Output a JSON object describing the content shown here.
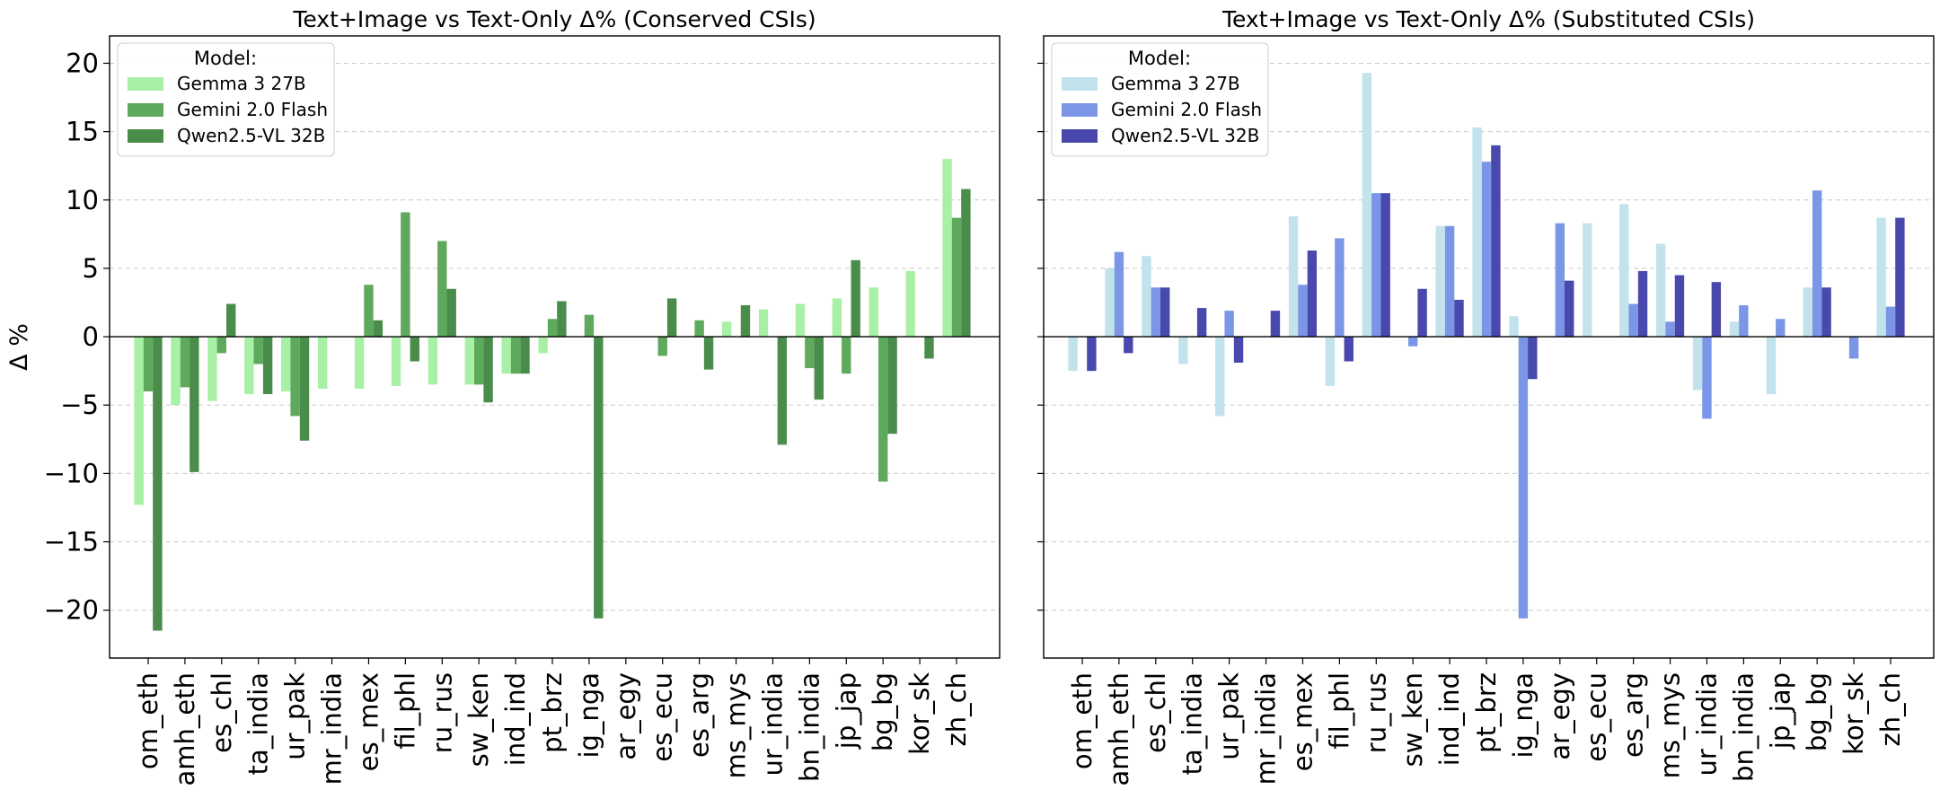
{
  "chart_data": [
    {
      "type": "bar",
      "title": "Text+Image vs Text-Only Δ% (Conserved CSIs)",
      "xlabel": "",
      "ylabel": "Δ %",
      "ylim": [
        -23.5,
        22
      ],
      "yticks": [
        -20,
        -15,
        -10,
        -5,
        0,
        5,
        10,
        15,
        20
      ],
      "ytick_labels": [
        "−20",
        "−15",
        "−10",
        "−5",
        "0",
        "5",
        "10",
        "15",
        "20"
      ],
      "grid": true,
      "legend": {
        "title": "Model:",
        "placement": "top-left"
      },
      "categories": [
        "om_eth",
        "amh_eth",
        "es_chl",
        "ta_india",
        "ur_pak",
        "mr_india",
        "es_mex",
        "fil_phl",
        "ru_rus",
        "sw_ken",
        "ind_ind",
        "pt_brz",
        "ig_nga",
        "ar_egy",
        "es_ecu",
        "es_arg",
        "ms_mys",
        "ur_india",
        "bn_india",
        "jp_jap",
        "bg_bg",
        "kor_sk",
        "zh_ch"
      ],
      "series": [
        {
          "name": "Gemma 3 27B",
          "color": "#a8f0a5",
          "values": [
            -12.3,
            -5.0,
            -4.7,
            -4.2,
            -4.0,
            -3.8,
            -3.8,
            -3.6,
            -3.5,
            -3.5,
            -2.7,
            -1.2,
            0,
            0,
            0,
            0,
            1.1,
            2.0,
            2.4,
            2.8,
            3.6,
            4.8,
            13.0
          ]
        },
        {
          "name": "Gemini 2.0 Flash",
          "color": "#5fa95d",
          "values": [
            -4.0,
            -3.7,
            -1.2,
            -2.0,
            -5.8,
            0,
            3.8,
            9.1,
            7.0,
            -3.5,
            -2.7,
            1.3,
            1.6,
            0,
            -1.4,
            1.2,
            0,
            0,
            -2.3,
            -2.7,
            -10.6,
            0,
            8.7
          ]
        },
        {
          "name": "Qwen2.5-VL 32B",
          "color": "#4a8c4a",
          "values": [
            -21.5,
            -9.9,
            2.4,
            -4.2,
            -7.6,
            0,
            1.2,
            -1.8,
            3.5,
            -4.8,
            -2.7,
            2.6,
            -20.6,
            0,
            2.8,
            -2.4,
            2.3,
            -7.9,
            -4.6,
            5.6,
            -7.1,
            -1.6,
            10.8
          ]
        }
      ]
    },
    {
      "type": "bar",
      "title": "Text+Image vs Text-Only Δ% (Substituted CSIs)",
      "xlabel": "",
      "ylabel": "",
      "ylim": [
        -23.5,
        22
      ],
      "yticks": [
        -20,
        -15,
        -10,
        -5,
        0,
        5,
        10,
        15,
        20
      ],
      "grid": true,
      "legend": {
        "title": "Model:",
        "placement": "top-left"
      },
      "categories": [
        "om_eth",
        "amh_eth",
        "es_chl",
        "ta_india",
        "ur_pak",
        "mr_india",
        "es_mex",
        "fil_phl",
        "ru_rus",
        "sw_ken",
        "ind_ind",
        "pt_brz",
        "ig_nga",
        "ar_egy",
        "es_ecu",
        "es_arg",
        "ms_mys",
        "ur_india",
        "bn_india",
        "jp_jap",
        "bg_bg",
        "kor_sk",
        "zh_ch"
      ],
      "series": [
        {
          "name": "Gemma 3 27B",
          "color": "#c2e2ec",
          "values": [
            -2.5,
            5.0,
            5.9,
            -2.0,
            -5.8,
            0,
            8.8,
            -3.6,
            19.3,
            0,
            8.1,
            15.3,
            1.5,
            0,
            8.3,
            9.7,
            6.8,
            -3.9,
            1.1,
            -4.2,
            3.6,
            0,
            8.7
          ]
        },
        {
          "name": "Gemini 2.0 Flash",
          "color": "#7b96e6",
          "values": [
            0,
            6.2,
            3.6,
            0,
            1.9,
            0,
            3.8,
            7.2,
            10.5,
            -0.7,
            8.1,
            12.8,
            -20.6,
            8.3,
            0,
            2.4,
            1.1,
            -6.0,
            2.3,
            1.3,
            10.7,
            -1.6,
            2.2
          ]
        },
        {
          "name": "Qwen2.5-VL 32B",
          "color": "#4848ad",
          "values": [
            -2.5,
            -1.2,
            3.6,
            2.1,
            -1.9,
            1.9,
            6.3,
            -1.8,
            10.5,
            3.5,
            2.7,
            14.0,
            -3.1,
            4.1,
            0,
            4.8,
            4.5,
            4.0,
            0,
            0,
            3.6,
            0,
            8.7
          ]
        }
      ]
    }
  ]
}
